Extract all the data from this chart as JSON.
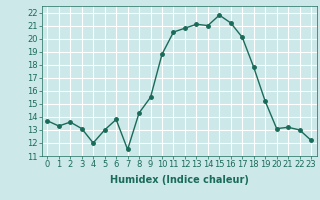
{
  "x": [
    0,
    1,
    2,
    3,
    4,
    5,
    6,
    7,
    8,
    9,
    10,
    11,
    12,
    13,
    14,
    15,
    16,
    17,
    18,
    19,
    20,
    21,
    22,
    23
  ],
  "y": [
    13.7,
    13.3,
    13.6,
    13.1,
    12.0,
    13.0,
    13.8,
    11.5,
    14.3,
    15.5,
    18.8,
    20.5,
    20.8,
    21.1,
    21.0,
    21.8,
    21.2,
    20.1,
    17.8,
    15.2,
    13.1,
    13.2,
    13.0,
    12.2
  ],
  "line_color": "#1a6b5a",
  "marker": "o",
  "markersize": 2.5,
  "linewidth": 1.0,
  "xlabel": "Humidex (Indice chaleur)",
  "xlim": [
    -0.5,
    23.5
  ],
  "ylim": [
    11,
    22.5
  ],
  "yticks": [
    11,
    12,
    13,
    14,
    15,
    16,
    17,
    18,
    19,
    20,
    21,
    22
  ],
  "xticks": [
    0,
    1,
    2,
    3,
    4,
    5,
    6,
    7,
    8,
    9,
    10,
    11,
    12,
    13,
    14,
    15,
    16,
    17,
    18,
    19,
    20,
    21,
    22,
    23
  ],
  "bg_color": "#cce8e8",
  "grid_color": "#ffffff",
  "tick_color": "#1a6b5a",
  "label_color": "#1a6b5a",
  "xlabel_fontsize": 7,
  "tick_fontsize": 6
}
